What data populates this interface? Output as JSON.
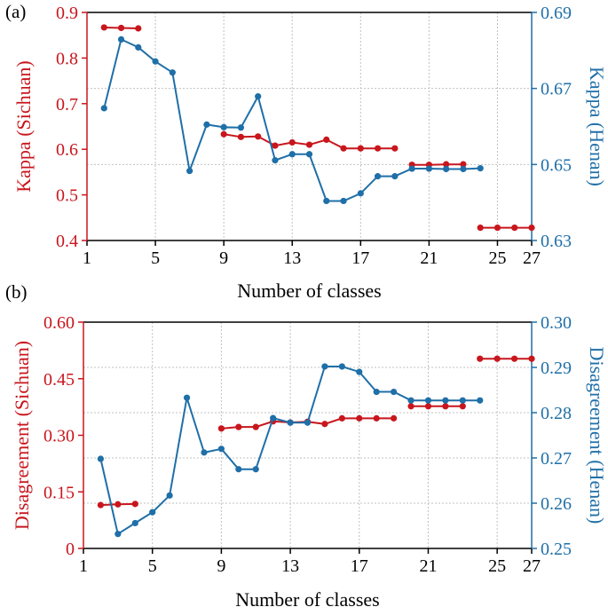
{
  "colors": {
    "red": "#c8161d",
    "blue": "#1f6fa8",
    "grid": "#c0c0c0",
    "axis": "#000000"
  },
  "chart_data": [
    {
      "panel_label": "(a)",
      "type": "line",
      "xlabel": "Number of classes",
      "ylabel_left": "Kappa (Sichuan)",
      "ylabel_right": "Kappa (Henan)",
      "xlim": [
        1,
        27
      ],
      "ylim_left": [
        0.4,
        0.9
      ],
      "ylim_right": [
        0.63,
        0.69
      ],
      "xticks": [
        1,
        5,
        9,
        13,
        17,
        21,
        25,
        27
      ],
      "yticks_left": [
        "0.4",
        "0.5",
        "0.6",
        "0.7",
        "0.8",
        "0.9"
      ],
      "yticks_right": [
        "0.63",
        "0.65",
        "0.67",
        "0.69"
      ],
      "grid": true,
      "series": [
        {
          "name": "Kappa (Sichuan)",
          "axis": "left",
          "color": "red",
          "segments": [
            {
              "x": [
                2,
                3,
                4
              ],
              "y": [
                0.867,
                0.866,
                0.865
              ]
            },
            {
              "x": [
                9,
                10,
                11,
                12,
                13,
                14,
                15,
                16,
                17,
                18,
                19
              ],
              "y": [
                0.633,
                0.627,
                0.628,
                0.608,
                0.615,
                0.61,
                0.621,
                0.602,
                0.602,
                0.602,
                0.602
              ]
            },
            {
              "x": [
                20,
                21,
                22,
                23
              ],
              "y": [
                0.566,
                0.566,
                0.567,
                0.567
              ]
            },
            {
              "x": [
                24,
                25,
                26,
                27
              ],
              "y": [
                0.428,
                0.428,
                0.428,
                0.428
              ]
            }
          ]
        },
        {
          "name": "Kappa (Henan)",
          "axis": "right",
          "color": "blue",
          "segments": [
            {
              "x": [
                2,
                3,
                4,
                5,
                6,
                7,
                8,
                9,
                10,
                11,
                12,
                13,
                14,
                15,
                16,
                17,
                18,
                19,
                20,
                21,
                22,
                23,
                24
              ],
              "y": [
                0.6648,
                0.6829,
                0.6808,
                0.6771,
                0.6742,
                0.6483,
                0.6605,
                0.6598,
                0.6597,
                0.6679,
                0.6511,
                0.6527,
                0.6527,
                0.6404,
                0.6404,
                0.6424,
                0.6469,
                0.6469,
                0.6489,
                0.6489,
                0.6488,
                0.6488,
                0.649
              ]
            }
          ]
        }
      ]
    },
    {
      "panel_label": "(b)",
      "type": "line",
      "xlabel": "Number of classes",
      "ylabel_left": "Disagreement (Sichuan)",
      "ylabel_right": "Disagreement (Henan)",
      "xlim": [
        1,
        27
      ],
      "ylim_left": [
        0,
        0.6
      ],
      "ylim_right": [
        0.25,
        0.3
      ],
      "xticks": [
        1,
        5,
        9,
        13,
        17,
        21,
        25,
        27
      ],
      "yticks_left": [
        "0",
        "0.15",
        "0.30",
        "0.45",
        "0.60"
      ],
      "yticks_right": [
        "0.25",
        "0.26",
        "0.27",
        "0.28",
        "0.29",
        "0.30"
      ],
      "grid": true,
      "series": [
        {
          "name": "Disagreement (Sichuan)",
          "axis": "left",
          "color": "red",
          "segments": [
            {
              "x": [
                2,
                3,
                4
              ],
              "y": [
                0.115,
                0.117,
                0.118
              ]
            },
            {
              "x": [
                9,
                10,
                11,
                12,
                13,
                14,
                15,
                16,
                17,
                18,
                19
              ],
              "y": [
                0.318,
                0.322,
                0.322,
                0.337,
                0.334,
                0.336,
                0.33,
                0.345,
                0.345,
                0.345,
                0.345
              ]
            },
            {
              "x": [
                20,
                21,
                22,
                23
              ],
              "y": [
                0.377,
                0.377,
                0.377,
                0.377
              ]
            },
            {
              "x": [
                24,
                25,
                26,
                27
              ],
              "y": [
                0.503,
                0.503,
                0.503,
                0.503
              ]
            }
          ]
        },
        {
          "name": "Disagreement (Henan)",
          "axis": "right",
          "color": "blue",
          "segments": [
            {
              "x": [
                2,
                3,
                4,
                5,
                6,
                7,
                8,
                9,
                10,
                11,
                12,
                13,
                14,
                15,
                16,
                17,
                18,
                19,
                20,
                21,
                22,
                23,
                24
              ],
              "y": [
                0.2698,
                0.2532,
                0.2556,
                0.258,
                0.2617,
                0.2833,
                0.2712,
                0.272,
                0.2675,
                0.2675,
                0.2788,
                0.2778,
                0.2778,
                0.2902,
                0.2902,
                0.289,
                0.2846,
                0.2846,
                0.2827,
                0.2827,
                0.2827,
                0.2827,
                0.2827
              ]
            }
          ]
        }
      ]
    }
  ]
}
